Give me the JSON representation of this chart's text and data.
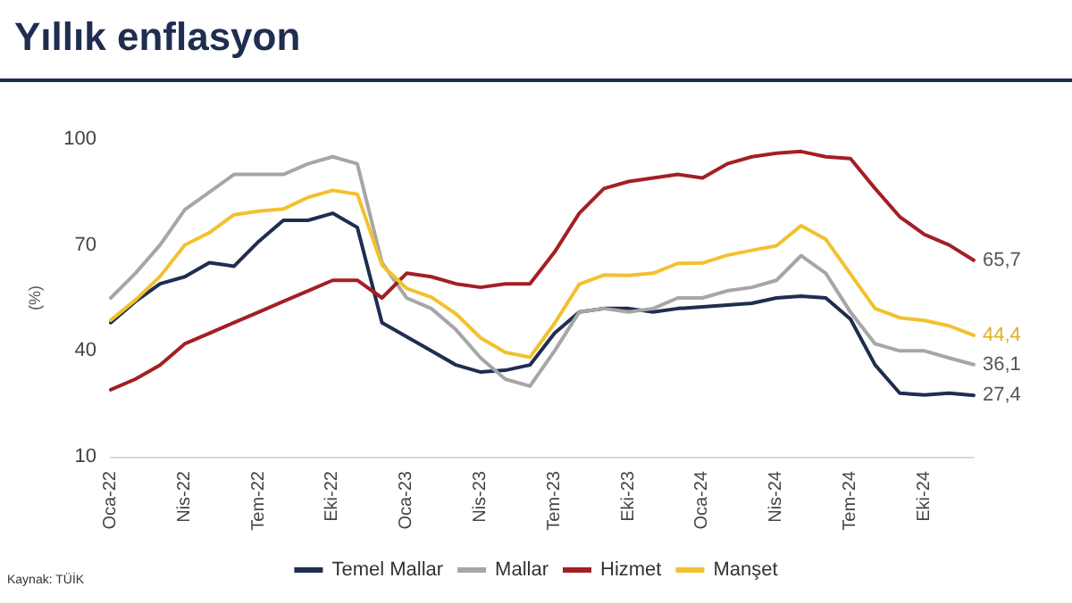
{
  "chart_data": {
    "type": "line",
    "title": "Yıllık enflasyon",
    "ylabel": "(%)",
    "annotations": [
      "Kaynak: TÜİK"
    ],
    "categories": [
      "Oca-22",
      null,
      null,
      "Nis-22",
      null,
      null,
      "Tem-22",
      null,
      null,
      "Eki-22",
      null,
      null,
      "Oca-23",
      null,
      null,
      "Nis-23",
      null,
      null,
      "Tem-23",
      null,
      null,
      "Eki-23",
      null,
      null,
      "Oca-24",
      null,
      null,
      "Nis-24",
      null,
      null,
      "Tem-24",
      null,
      null,
      "Eki-24",
      null,
      null
    ],
    "series": [
      {
        "name": "Temel Mallar",
        "color": "#1f2d4f",
        "values": [
          48,
          54,
          59,
          61,
          65,
          64,
          71,
          77,
          77,
          79,
          75,
          48,
          44,
          40,
          36,
          34,
          34.5,
          36,
          45,
          51,
          52,
          52,
          51,
          52,
          52.5,
          53,
          53.5,
          55,
          55.5,
          55,
          49,
          36,
          28,
          27.5,
          28,
          27.4
        ],
        "value_labels": [
          null,
          null,
          null,
          null,
          null,
          null,
          null,
          null,
          null,
          null,
          null,
          null,
          null,
          null,
          null,
          null,
          null,
          null,
          null,
          null,
          null,
          null,
          null,
          null,
          null,
          null,
          null,
          null,
          null,
          null,
          null,
          null,
          null,
          null,
          null,
          "27,4"
        ]
      },
      {
        "name": "Mallar",
        "color": "#a6a6a6",
        "values": [
          55,
          62,
          70,
          80,
          85,
          90,
          90,
          90,
          93,
          95,
          93,
          65,
          55,
          52,
          46,
          38,
          32,
          30,
          40,
          51,
          52,
          51,
          52,
          55,
          55,
          57,
          58,
          60,
          67,
          62,
          51,
          42,
          40,
          40,
          38,
          36.1
        ],
        "value_labels": [
          null,
          null,
          null,
          null,
          null,
          null,
          null,
          null,
          null,
          null,
          null,
          null,
          null,
          null,
          null,
          null,
          null,
          null,
          null,
          null,
          null,
          null,
          null,
          null,
          null,
          null,
          null,
          null,
          null,
          null,
          null,
          null,
          null,
          null,
          null,
          "36,1"
        ]
      },
      {
        "name": "Hizmet",
        "color": "#a31f24",
        "values": [
          29,
          32,
          36,
          42,
          45,
          48,
          51,
          54,
          57,
          60,
          60,
          55,
          62,
          61,
          59,
          58,
          59,
          59,
          68,
          79,
          86,
          88,
          89,
          90,
          89,
          93,
          95,
          96,
          96.5,
          95,
          94.5,
          86,
          78,
          73,
          70,
          65.7
        ],
        "value_labels": [
          null,
          null,
          null,
          null,
          null,
          null,
          null,
          null,
          null,
          null,
          null,
          null,
          null,
          null,
          null,
          null,
          null,
          null,
          null,
          null,
          null,
          null,
          null,
          null,
          null,
          null,
          null,
          null,
          null,
          null,
          null,
          null,
          null,
          null,
          null,
          "65,7"
        ]
      },
      {
        "name": "Manşet",
        "color": "#f2c12e",
        "values": [
          48.7,
          54.4,
          61.1,
          70,
          73.5,
          78.6,
          79.6,
          80.2,
          83.5,
          85.5,
          84.4,
          64.3,
          57.7,
          55.2,
          50.5,
          43.7,
          39.6,
          38.2,
          47.8,
          58.9,
          61.5,
          61.4,
          62,
          64.8,
          64.9,
          67.1,
          68.5,
          69.8,
          75.5,
          71.6,
          61.8,
          52,
          49.4,
          48.6,
          47.1,
          44.4
        ],
        "value_labels": [
          null,
          null,
          null,
          null,
          null,
          null,
          null,
          null,
          null,
          null,
          null,
          null,
          null,
          null,
          null,
          null,
          null,
          null,
          null,
          null,
          null,
          null,
          null,
          null,
          null,
          null,
          null,
          null,
          null,
          null,
          null,
          null,
          null,
          null,
          null,
          "44,4"
        ]
      }
    ],
    "ylim": [
      10,
      100
    ],
    "yticks": [
      10,
      40,
      70,
      100
    ],
    "grid": false,
    "legend": "bottom",
    "marker": "none",
    "line_style": "solid"
  }
}
